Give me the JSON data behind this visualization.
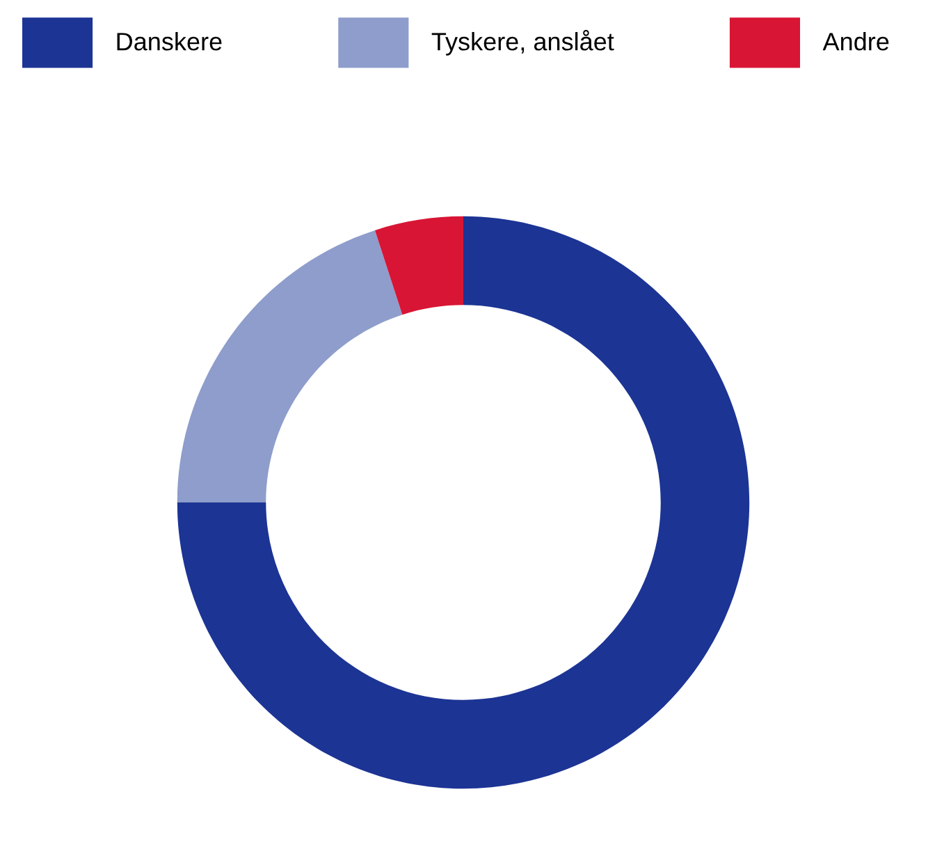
{
  "chart_data": {
    "type": "donut",
    "legend": "top",
    "categories": [
      "Danskere",
      "Tyskere, anslået",
      "Andre"
    ],
    "values": [
      75,
      20,
      5
    ],
    "colors": [
      "#1c3494",
      "#8e9dcb",
      "#d81535"
    ]
  }
}
